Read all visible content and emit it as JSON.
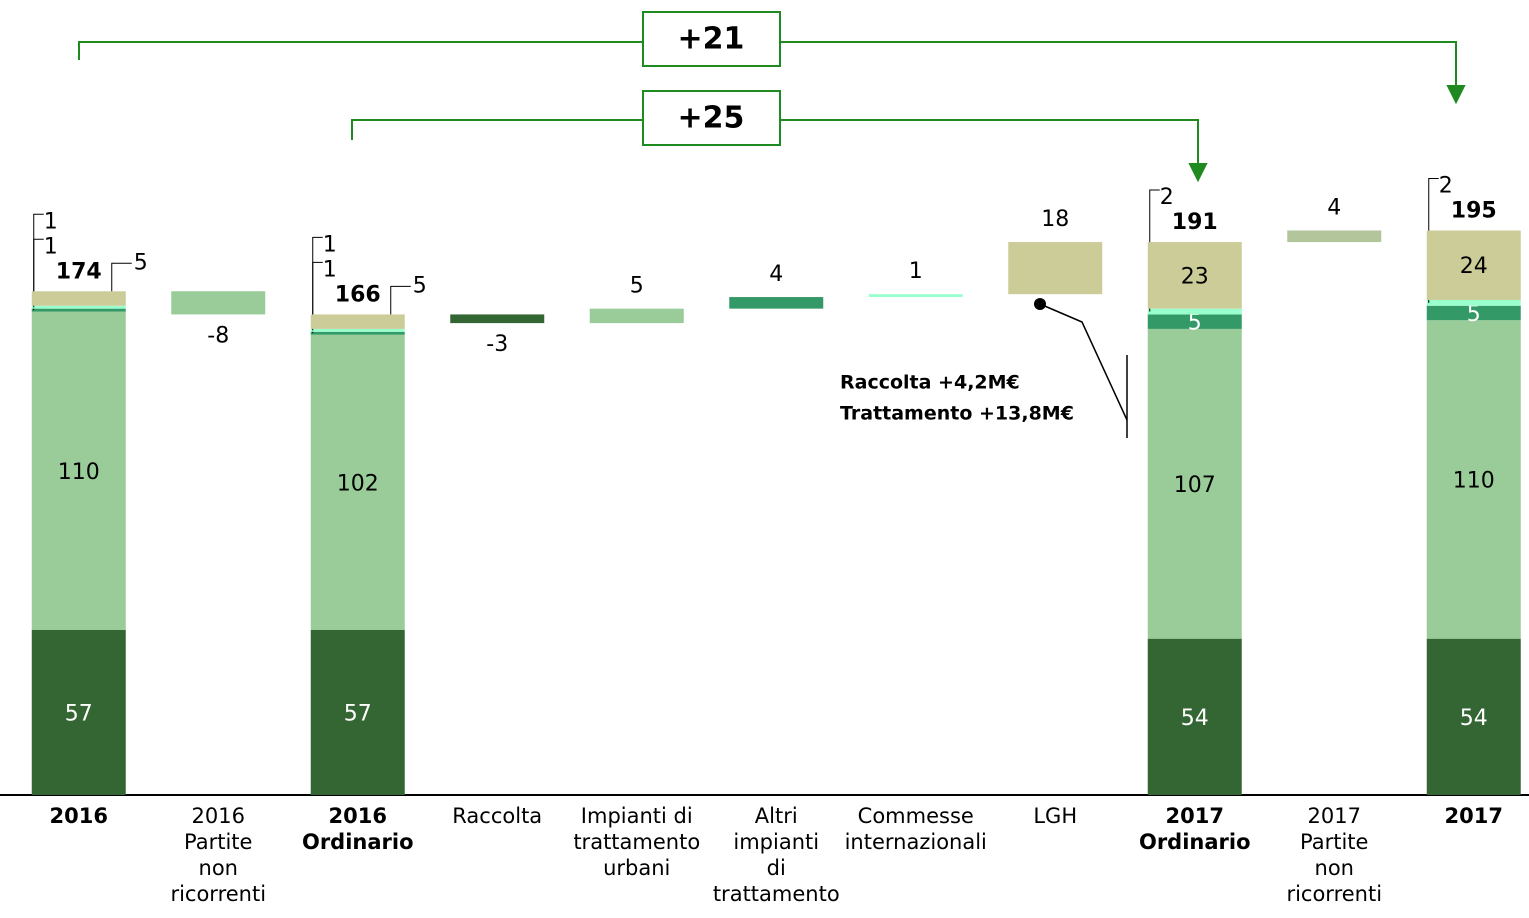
{
  "chart_data": {
    "type": "waterfall",
    "categories": [
      "2016",
      "2016\nPartite\nnon\nricorrenti",
      "2016\nOrdinario",
      "Raccolta",
      "Impianti di\ntrattamento\nurbani",
      "Altri\nimpianti\ndi\ntrattamento",
      "Commesse\ninternazionali",
      "LGH",
      "2017\nOrdinario",
      "2017\nPartite\nnon\nricorrenti",
      "2017"
    ],
    "series": [
      {
        "color": "#336633",
        "values": [
          57,
          null,
          57,
          null,
          null,
          null,
          null,
          null,
          54,
          null,
          54
        ]
      },
      {
        "color": "#99cc99",
        "values": [
          110,
          null,
          102,
          null,
          null,
          null,
          null,
          null,
          107,
          null,
          110
        ]
      },
      {
        "color": "#339966",
        "values": [
          1,
          null,
          1,
          null,
          null,
          null,
          null,
          null,
          5,
          null,
          5
        ]
      },
      {
        "color": "#99ffcc",
        "values": [
          1,
          null,
          1,
          null,
          null,
          null,
          null,
          null,
          2,
          null,
          2
        ]
      },
      {
        "color": "#cccc99",
        "values": [
          5,
          null,
          5,
          null,
          null,
          null,
          null,
          null,
          23,
          null,
          24
        ]
      }
    ],
    "totals": [
      174,
      null,
      166,
      null,
      null,
      null,
      null,
      null,
      191,
      null,
      195
    ],
    "steps": [
      null,
      -8,
      null,
      -3,
      5,
      4,
      1,
      18,
      null,
      4,
      null
    ],
    "step_colors": [
      null,
      "#99cc99",
      null,
      "#336633",
      "#99cc99",
      "#339966",
      "#99ffcc",
      "#cccc99",
      null,
      "#b3c59a",
      null
    ],
    "ylim": [
      0,
      200
    ],
    "annotations": [
      "Raccolta +4,2M€",
      "Trattamento +13,8M€"
    ],
    "bridges": [
      "+21",
      "+25"
    ]
  }
}
